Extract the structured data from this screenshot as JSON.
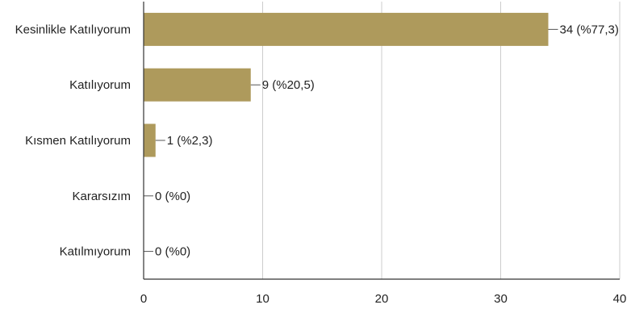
{
  "chart_data": {
    "type": "bar",
    "orientation": "horizontal",
    "categories": [
      "Kesinlikle Katılıyorum",
      "Katılıyorum",
      "Kısmen Katılıyorum",
      "Kararsızım",
      "Katılmıyorum"
    ],
    "values": [
      34,
      9,
      1,
      0,
      0
    ],
    "data_labels": [
      "34 (%77,3)",
      "9 (%20,5)",
      "1 (%2,3)",
      "0 (%0)",
      "0 (%0)"
    ],
    "xlim": [
      0,
      40
    ],
    "x_ticks": [
      0,
      10,
      20,
      30,
      40
    ],
    "title": "",
    "xlabel": "",
    "ylabel": "",
    "grid": "vertical",
    "legend": "none",
    "colors": {
      "bar": "#ae9a5c",
      "grid": "#cccccc",
      "axis": "#333333",
      "text": "#222222",
      "leader": "#555555"
    }
  }
}
